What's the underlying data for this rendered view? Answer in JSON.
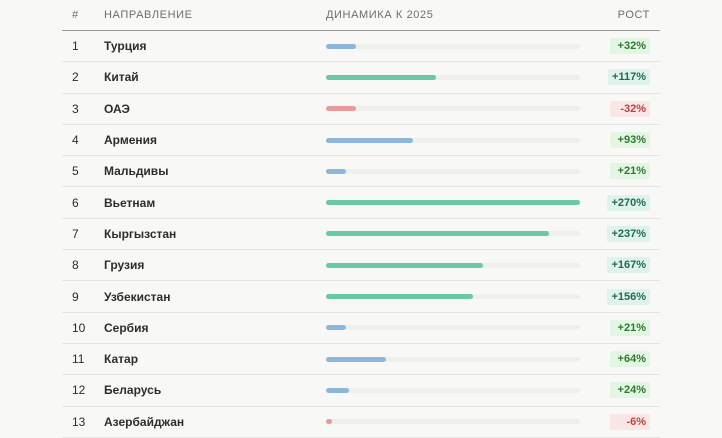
{
  "header": {
    "num": "#",
    "direction": "НАПРАВЛЕНИЕ",
    "dynamics": "ДИНАМИКА К 2025",
    "growth": "РОСТ"
  },
  "scale_max_percent": 270,
  "colors": {
    "bar_blue": "#8db6dd",
    "bar_green": "#6ac9a4",
    "bar_red": "#ea9a9a",
    "badge_green_bg": "#e3f5e3",
    "badge_green_text": "#2f7a2f",
    "badge_teal_bg": "#dff3ec",
    "badge_teal_text": "#1f6b52",
    "badge_red_bg": "#fbe6e6",
    "badge_red_text": "#b84444"
  },
  "rows": [
    {
      "rank": "1",
      "country": "Турция",
      "growth": "+32%",
      "value": 32,
      "color": "blue",
      "badge": "green"
    },
    {
      "rank": "2",
      "country": "Китай",
      "growth": "+117%",
      "value": 117,
      "color": "green",
      "badge": "teal"
    },
    {
      "rank": "3",
      "country": "ОАЭ",
      "growth": "-32%",
      "value": -32,
      "color": "red",
      "badge": "red"
    },
    {
      "rank": "4",
      "country": "Армения",
      "growth": "+93%",
      "value": 93,
      "color": "blue",
      "badge": "green"
    },
    {
      "rank": "5",
      "country": "Мальдивы",
      "growth": "+21%",
      "value": 21,
      "color": "blue",
      "badge": "green"
    },
    {
      "rank": "6",
      "country": "Вьетнам",
      "growth": "+270%",
      "value": 270,
      "color": "green",
      "badge": "teal"
    },
    {
      "rank": "7",
      "country": "Кыргызстан",
      "growth": "+237%",
      "value": 237,
      "color": "green",
      "badge": "teal"
    },
    {
      "rank": "8",
      "country": "Грузия",
      "growth": "+167%",
      "value": 167,
      "color": "green",
      "badge": "teal"
    },
    {
      "rank": "9",
      "country": "Узбекистан",
      "growth": "+156%",
      "value": 156,
      "color": "green",
      "badge": "teal"
    },
    {
      "rank": "10",
      "country": "Сербия",
      "growth": "+21%",
      "value": 21,
      "color": "blue",
      "badge": "green"
    },
    {
      "rank": "11",
      "country": "Катар",
      "growth": "+64%",
      "value": 64,
      "color": "blue",
      "badge": "green"
    },
    {
      "rank": "12",
      "country": "Беларусь",
      "growth": "+24%",
      "value": 24,
      "color": "blue",
      "badge": "green"
    },
    {
      "rank": "13",
      "country": "Азербайджан",
      "growth": "-6%",
      "value": -6,
      "color": "red",
      "badge": "red"
    }
  ]
}
